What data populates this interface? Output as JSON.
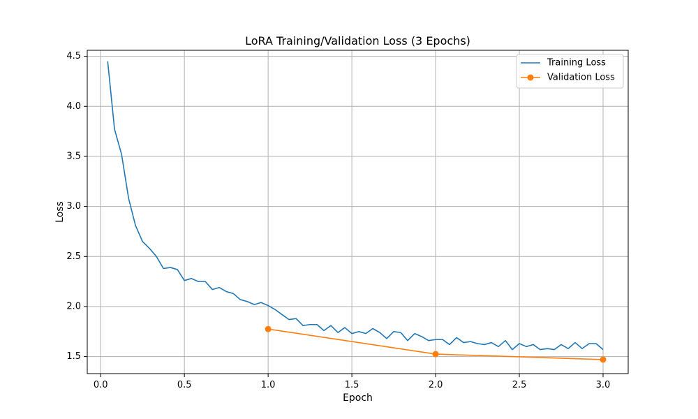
{
  "chart_data": {
    "type": "line",
    "title": "LoRA Training/Validation Loss (3 Epochs)",
    "xlabel": "Epoch",
    "ylabel": "Loss",
    "xlim": [
      -0.08,
      3.15
    ],
    "ylim": [
      1.33,
      4.56
    ],
    "xticks": [
      0.0,
      0.5,
      1.0,
      1.5,
      2.0,
      2.5,
      3.0
    ],
    "xtick_labels": [
      "0.0",
      "0.5",
      "1.0",
      "1.5",
      "2.0",
      "2.5",
      "3.0"
    ],
    "yticks": [
      1.5,
      2.0,
      2.5,
      3.0,
      3.5,
      4.0,
      4.5
    ],
    "ytick_labels": [
      "1.5",
      "2.0",
      "2.5",
      "3.0",
      "3.5",
      "4.0",
      "4.5"
    ],
    "grid": true,
    "legend_position": "top-right",
    "series": [
      {
        "name": "Training Loss",
        "color": "#1f77b4",
        "marker": "none",
        "x": [
          0.042,
          0.083,
          0.125,
          0.167,
          0.208,
          0.25,
          0.292,
          0.333,
          0.375,
          0.417,
          0.458,
          0.5,
          0.542,
          0.583,
          0.625,
          0.667,
          0.708,
          0.75,
          0.792,
          0.833,
          0.875,
          0.917,
          0.958,
          1.0,
          1.042,
          1.083,
          1.125,
          1.167,
          1.208,
          1.25,
          1.292,
          1.333,
          1.375,
          1.417,
          1.458,
          1.5,
          1.542,
          1.583,
          1.625,
          1.667,
          1.708,
          1.75,
          1.792,
          1.833,
          1.875,
          1.917,
          1.958,
          2.0,
          2.042,
          2.083,
          2.125,
          2.167,
          2.208,
          2.25,
          2.292,
          2.333,
          2.375,
          2.417,
          2.458,
          2.5,
          2.542,
          2.583,
          2.625,
          2.667,
          2.708,
          2.75,
          2.792,
          2.833,
          2.875,
          2.917,
          2.958,
          3.0
        ],
        "y": [
          4.45,
          3.77,
          3.52,
          3.08,
          2.81,
          2.65,
          2.58,
          2.5,
          2.38,
          2.39,
          2.37,
          2.26,
          2.28,
          2.25,
          2.25,
          2.17,
          2.19,
          2.15,
          2.13,
          2.07,
          2.05,
          2.02,
          2.04,
          2.01,
          1.97,
          1.92,
          1.87,
          1.88,
          1.81,
          1.82,
          1.82,
          1.76,
          1.81,
          1.74,
          1.79,
          1.73,
          1.75,
          1.73,
          1.78,
          1.74,
          1.68,
          1.75,
          1.74,
          1.66,
          1.73,
          1.7,
          1.66,
          1.67,
          1.67,
          1.62,
          1.69,
          1.64,
          1.65,
          1.63,
          1.62,
          1.64,
          1.6,
          1.66,
          1.57,
          1.63,
          1.6,
          1.62,
          1.57,
          1.58,
          1.57,
          1.62,
          1.58,
          1.64,
          1.58,
          1.63,
          1.63,
          1.57
        ]
      },
      {
        "name": "Validation Loss",
        "color": "#ff7f0e",
        "marker": "circle",
        "x": [
          1.0,
          2.0,
          3.0
        ],
        "y": [
          1.775,
          1.525,
          1.47
        ]
      }
    ]
  }
}
